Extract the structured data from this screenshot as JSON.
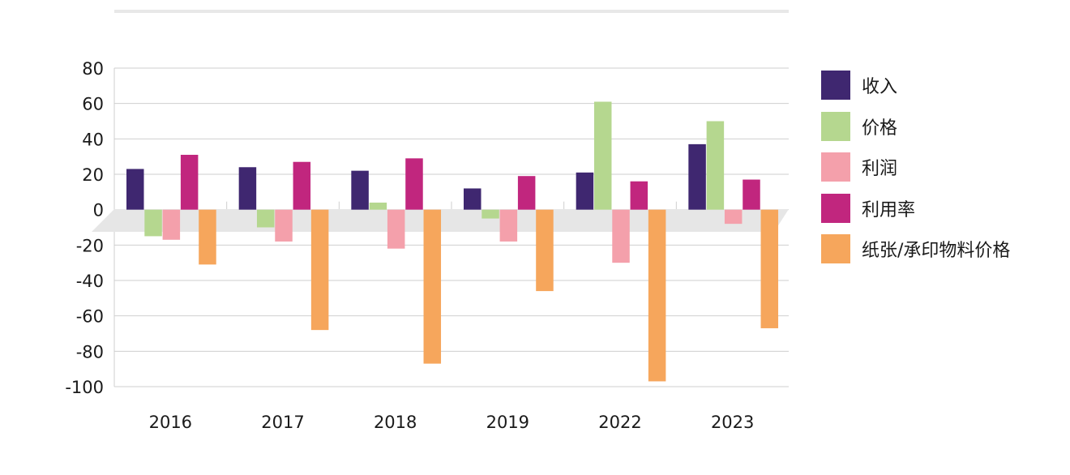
{
  "chart_data": {
    "type": "bar",
    "categories": [
      "2016",
      "2017",
      "2018",
      "2019",
      "2022",
      "2023"
    ],
    "ylim": [
      -100,
      80
    ],
    "yticks": [
      80,
      60,
      40,
      20,
      0,
      -20,
      -40,
      -60,
      -80,
      -100
    ],
    "grid": true,
    "legend_position": "right",
    "series": [
      {
        "name": "收入",
        "color": "#3f2770",
        "values": [
          23,
          24,
          22,
          12,
          21,
          37
        ]
      },
      {
        "name": "价格",
        "color": "#b5d78f",
        "values": [
          -15,
          -10,
          4,
          -5,
          61,
          50
        ]
      },
      {
        "name": "利润",
        "color": "#f4a0ab",
        "values": [
          -17,
          -18,
          -22,
          -18,
          -30,
          -8
        ]
      },
      {
        "name": "利用率",
        "color": "#c1267e",
        "values": [
          31,
          27,
          29,
          19,
          16,
          17
        ]
      },
      {
        "name": "纸张/承印物料价格",
        "color": "#f6a65c",
        "values": [
          -31,
          -68,
          -87,
          -46,
          -97,
          -67
        ]
      }
    ]
  }
}
